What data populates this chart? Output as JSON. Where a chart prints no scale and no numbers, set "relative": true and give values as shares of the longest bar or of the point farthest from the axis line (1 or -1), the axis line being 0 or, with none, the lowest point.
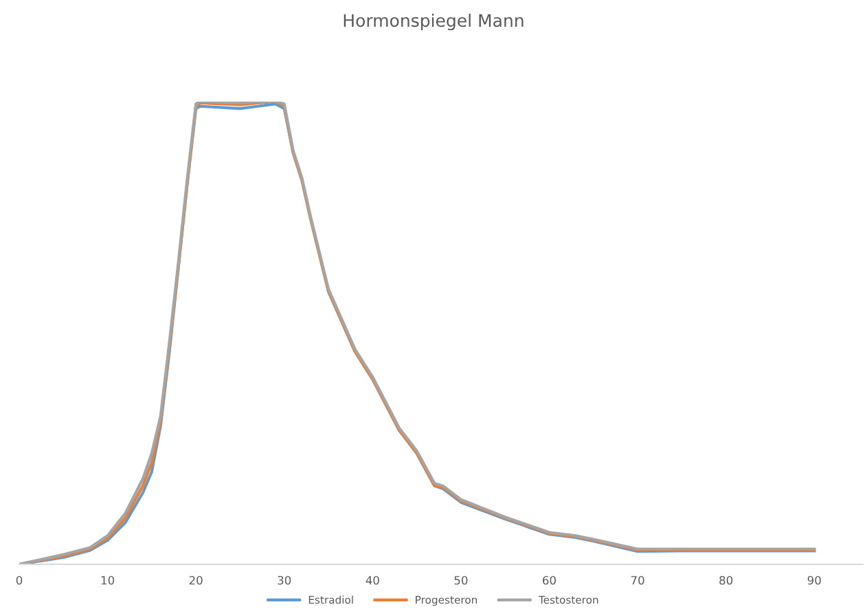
{
  "chart_data": {
    "type": "line",
    "title": "Hormonspiegel Mann",
    "relative": true,
    "legend": "bottom",
    "grid": false,
    "marker": "none",
    "line_style": "solid",
    "x": [
      0,
      5,
      8,
      10,
      12,
      14,
      15,
      16,
      17,
      18,
      19,
      20,
      20.5,
      25,
      27,
      29,
      30,
      31,
      32,
      33,
      35,
      38,
      40,
      43,
      45,
      47,
      48,
      50,
      55,
      60,
      63,
      65,
      70,
      75,
      90
    ],
    "xlim": [
      0,
      95.5
    ],
    "xticks": [
      0,
      10,
      20,
      30,
      40,
      50,
      60,
      70,
      80,
      90
    ],
    "series": [
      {
        "name": "Estradiol",
        "color": "#5b9bd5",
        "values": [
          0,
          0.015,
          0.03,
          0.052,
          0.09,
          0.155,
          0.2,
          0.3,
          0.46,
          0.64,
          0.82,
          0.985,
          0.99,
          0.985,
          0.99,
          0.995,
          0.985,
          0.89,
          0.83,
          0.745,
          0.59,
          0.46,
          0.4,
          0.29,
          0.24,
          0.17,
          0.163,
          0.134,
          0.098,
          0.065,
          0.058,
          0.05,
          0.028,
          0.029,
          0.029
        ]
      },
      {
        "name": "Progesteron",
        "color": "#ed7d31",
        "values": [
          0,
          0.018,
          0.033,
          0.057,
          0.1,
          0.17,
          0.22,
          0.31,
          0.47,
          0.64,
          0.82,
          0.99,
          0.997,
          0.993,
          0.997,
          1.0,
          0.99,
          0.89,
          0.83,
          0.745,
          0.59,
          0.46,
          0.4,
          0.29,
          0.24,
          0.17,
          0.166,
          0.137,
          0.1,
          0.067,
          0.06,
          0.052,
          0.031,
          0.031,
          0.031
        ]
      },
      {
        "name": "Testosteron",
        "color": "#a5a5a5",
        "values": [
          0,
          0.021,
          0.036,
          0.062,
          0.11,
          0.185,
          0.24,
          0.32,
          0.48,
          0.65,
          0.83,
          0.995,
          1.0,
          0.997,
          1.0,
          1.0,
          0.995,
          0.895,
          0.835,
          0.75,
          0.595,
          0.465,
          0.405,
          0.295,
          0.245,
          0.175,
          0.169,
          0.14,
          0.102,
          0.069,
          0.062,
          0.054,
          0.033,
          0.033,
          0.033
        ]
      }
    ]
  }
}
